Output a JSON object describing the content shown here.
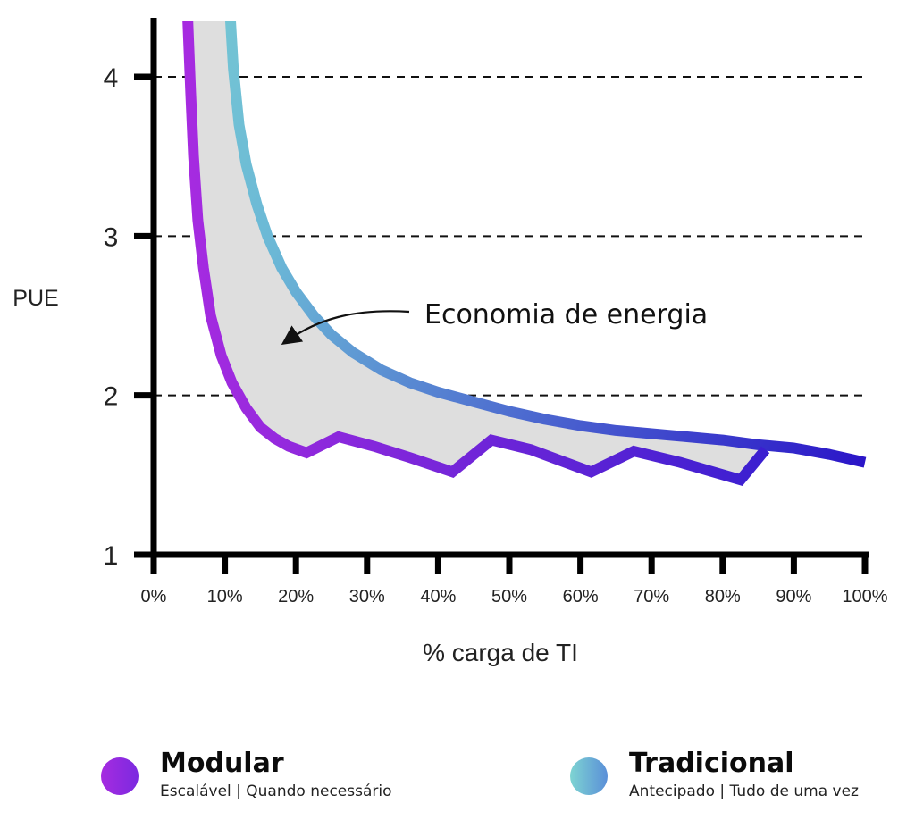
{
  "chart_data": {
    "type": "area",
    "xlabel": "% carga de TI",
    "ylabel": "PUE",
    "xlim": [
      0,
      100
    ],
    "ylim": [
      1,
      4.35
    ],
    "x_ticks": [
      "0%",
      "10%",
      "20%",
      "30%",
      "40%",
      "50%",
      "60%",
      "70%",
      "80%",
      "90%",
      "100%"
    ],
    "y_ticks": [
      "1",
      "2",
      "3",
      "4"
    ],
    "grid": "dashed horizontal at 2, 3, 4",
    "annotation": "Economia de energia",
    "series": [
      {
        "name": "Modular",
        "subtitle": "Escalável | Quando necessário",
        "color_start": "#a62be0",
        "color_end": "#3a1fd0",
        "points": [
          [
            4.8,
            4.35
          ],
          [
            5.2,
            3.9
          ],
          [
            5.6,
            3.5
          ],
          [
            6.2,
            3.1
          ],
          [
            7,
            2.8
          ],
          [
            8,
            2.5
          ],
          [
            9.5,
            2.25
          ],
          [
            11,
            2.08
          ],
          [
            13,
            1.92
          ],
          [
            15,
            1.8
          ],
          [
            17,
            1.73
          ],
          [
            19,
            1.68
          ],
          [
            21.5,
            1.64
          ],
          [
            26,
            1.74
          ],
          [
            31,
            1.68
          ],
          [
            36,
            1.61
          ],
          [
            42,
            1.52
          ],
          [
            47.5,
            1.72
          ],
          [
            53,
            1.66
          ],
          [
            61.5,
            1.52
          ],
          [
            67.5,
            1.65
          ],
          [
            74,
            1.58
          ],
          [
            82.5,
            1.47
          ],
          [
            86,
            1.66
          ]
        ]
      },
      {
        "name": "Tradicional",
        "subtitle": "Antecipado | Tudo de uma vez",
        "color_start": "#7ed4d2",
        "color_end": "#2a12c8",
        "points": [
          [
            10.8,
            4.35
          ],
          [
            11.2,
            4.05
          ],
          [
            12,
            3.7
          ],
          [
            13,
            3.45
          ],
          [
            14.5,
            3.2
          ],
          [
            16,
            3.0
          ],
          [
            18,
            2.8
          ],
          [
            20,
            2.65
          ],
          [
            22.5,
            2.5
          ],
          [
            25,
            2.38
          ],
          [
            28,
            2.27
          ],
          [
            32,
            2.16
          ],
          [
            36,
            2.08
          ],
          [
            40,
            2.02
          ],
          [
            45,
            1.96
          ],
          [
            50,
            1.9
          ],
          [
            55,
            1.85
          ],
          [
            60,
            1.81
          ],
          [
            65,
            1.78
          ],
          [
            70,
            1.76
          ],
          [
            75,
            1.74
          ],
          [
            80,
            1.72
          ],
          [
            85,
            1.69
          ],
          [
            90,
            1.67
          ],
          [
            95,
            1.63
          ],
          [
            100,
            1.58
          ]
        ]
      }
    ]
  }
}
